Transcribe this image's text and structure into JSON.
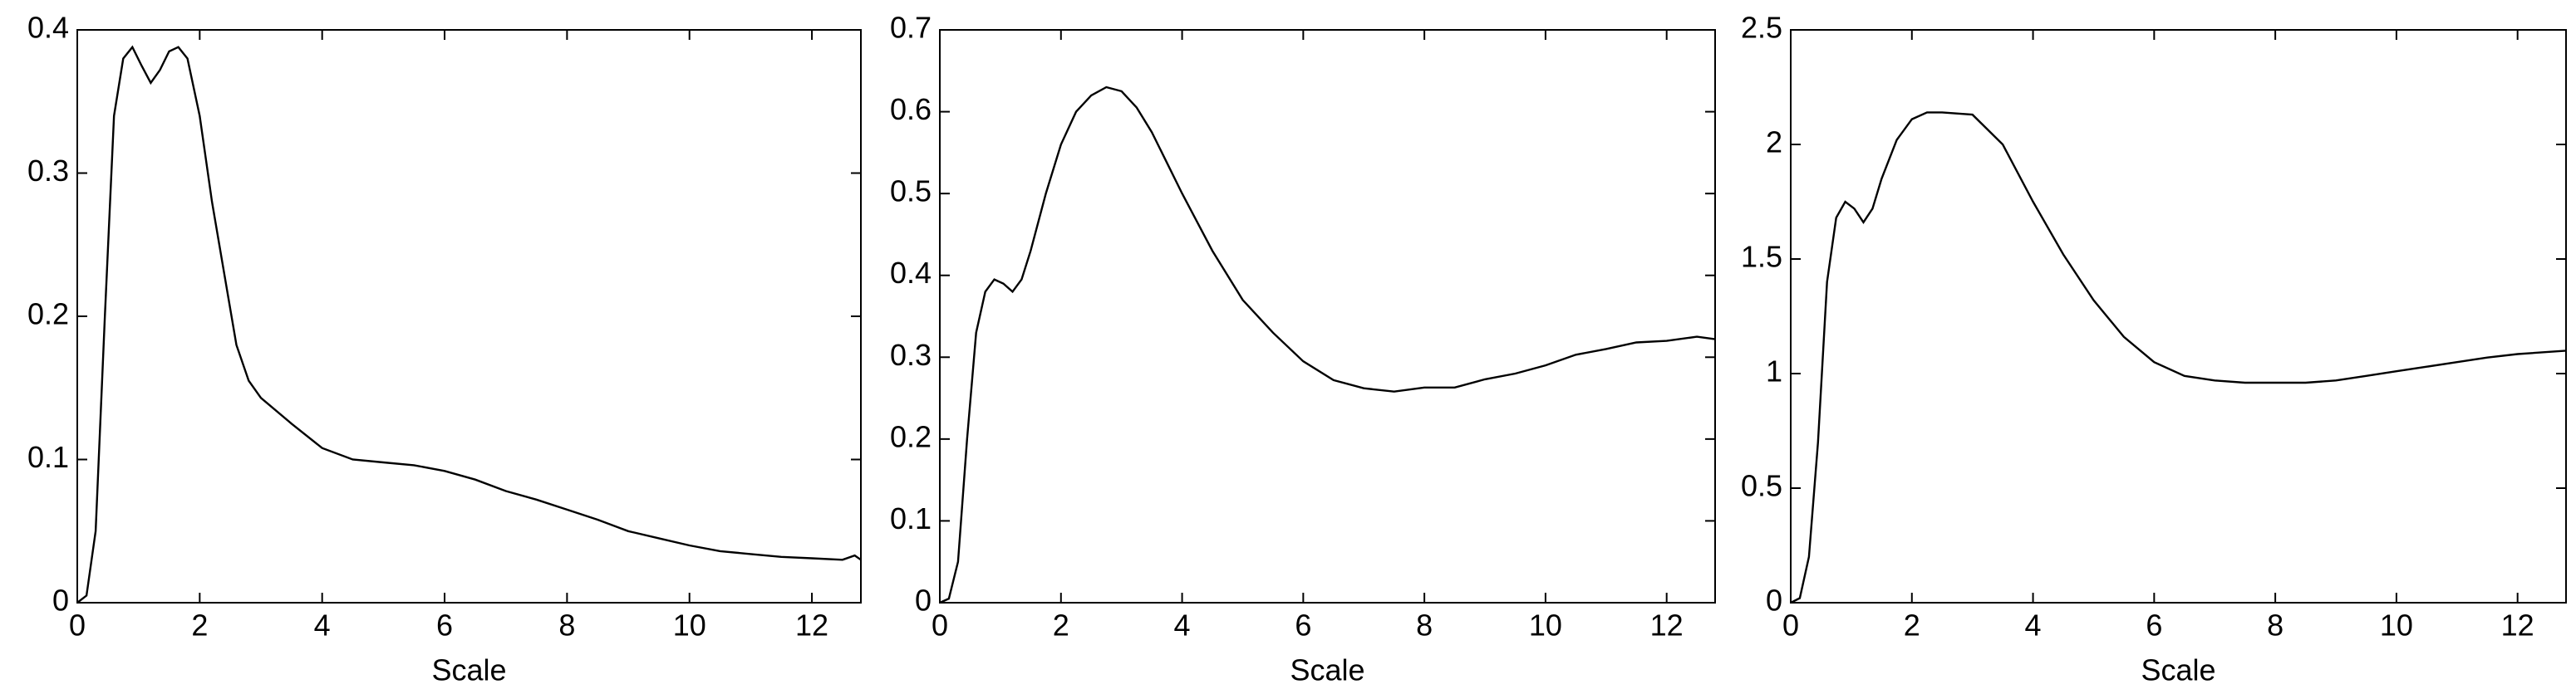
{
  "chart_data": [
    {
      "type": "line",
      "xlabel": "Scale",
      "color": "#000000",
      "xlim": [
        0,
        12.8
      ],
      "xticks": [
        0,
        2,
        4,
        6,
        8,
        10,
        12
      ],
      "ylim": [
        0,
        0.4
      ],
      "yticks": [
        0,
        0.1,
        0.2,
        0.3,
        0.4
      ],
      "x": [
        0,
        0.15,
        0.3,
        0.45,
        0.6,
        0.75,
        0.9,
        1.05,
        1.2,
        1.35,
        1.5,
        1.65,
        1.8,
        2.0,
        2.2,
        2.4,
        2.6,
        2.8,
        3.0,
        3.5,
        4.0,
        4.5,
        5,
        5.5,
        6,
        6.5,
        7,
        7.5,
        8,
        8.5,
        9,
        9.5,
        10,
        10.5,
        11,
        11.5,
        12,
        12.5,
        12.7,
        12.8
      ],
      "values": [
        0,
        0.005,
        0.05,
        0.2,
        0.34,
        0.38,
        0.388,
        0.375,
        0.363,
        0.372,
        0.385,
        0.388,
        0.38,
        0.34,
        0.28,
        0.23,
        0.18,
        0.155,
        0.143,
        0.125,
        0.108,
        0.1,
        0.098,
        0.096,
        0.092,
        0.086,
        0.078,
        0.072,
        0.065,
        0.058,
        0.05,
        0.045,
        0.04,
        0.036,
        0.034,
        0.032,
        0.031,
        0.03,
        0.033,
        0.03
      ]
    },
    {
      "type": "line",
      "xlabel": "Scale",
      "color": "#000000",
      "xlim": [
        0,
        12.8
      ],
      "xticks": [
        0,
        2,
        4,
        6,
        8,
        10,
        12
      ],
      "ylim": [
        0,
        0.7
      ],
      "yticks": [
        0,
        0.1,
        0.2,
        0.3,
        0.4,
        0.5,
        0.6,
        0.7
      ],
      "x": [
        0,
        0.15,
        0.3,
        0.45,
        0.6,
        0.75,
        0.9,
        1.05,
        1.2,
        1.35,
        1.5,
        1.75,
        2,
        2.25,
        2.5,
        2.75,
        3,
        3.25,
        3.5,
        4,
        4.5,
        5,
        5.5,
        6,
        6.5,
        7,
        7.5,
        8,
        8.5,
        9,
        9.5,
        10,
        10.5,
        11,
        11.5,
        12,
        12.5,
        12.8
      ],
      "values": [
        0,
        0.005,
        0.05,
        0.2,
        0.33,
        0.38,
        0.395,
        0.39,
        0.38,
        0.395,
        0.43,
        0.5,
        0.56,
        0.6,
        0.62,
        0.63,
        0.625,
        0.605,
        0.575,
        0.5,
        0.43,
        0.37,
        0.33,
        0.295,
        0.272,
        0.262,
        0.258,
        0.263,
        0.263,
        0.273,
        0.28,
        0.29,
        0.303,
        0.31,
        0.318,
        0.32,
        0.325,
        0.322
      ]
    },
    {
      "type": "line",
      "xlabel": "Scale",
      "color": "#000000",
      "xlim": [
        0,
        12.8
      ],
      "xticks": [
        0,
        2,
        4,
        6,
        8,
        10,
        12
      ],
      "ylim": [
        0,
        2.5
      ],
      "yticks": [
        0,
        0.5,
        1,
        1.5,
        2,
        2.5
      ],
      "x": [
        0,
        0.15,
        0.3,
        0.45,
        0.6,
        0.75,
        0.9,
        1.05,
        1.2,
        1.35,
        1.5,
        1.75,
        2,
        2.25,
        2.5,
        3,
        3.5,
        4,
        4.5,
        5,
        5.5,
        6,
        6.5,
        7,
        7.5,
        8,
        8.5,
        9,
        9.5,
        10,
        10.5,
        11,
        11.5,
        12,
        12.8
      ],
      "values": [
        0,
        0.02,
        0.2,
        0.7,
        1.4,
        1.68,
        1.75,
        1.72,
        1.66,
        1.72,
        1.85,
        2.02,
        2.11,
        2.14,
        2.14,
        2.13,
        2.0,
        1.75,
        1.52,
        1.32,
        1.16,
        1.05,
        0.99,
        0.97,
        0.96,
        0.96,
        0.96,
        0.97,
        0.99,
        1.01,
        1.03,
        1.05,
        1.07,
        1.085,
        1.1
      ]
    }
  ]
}
